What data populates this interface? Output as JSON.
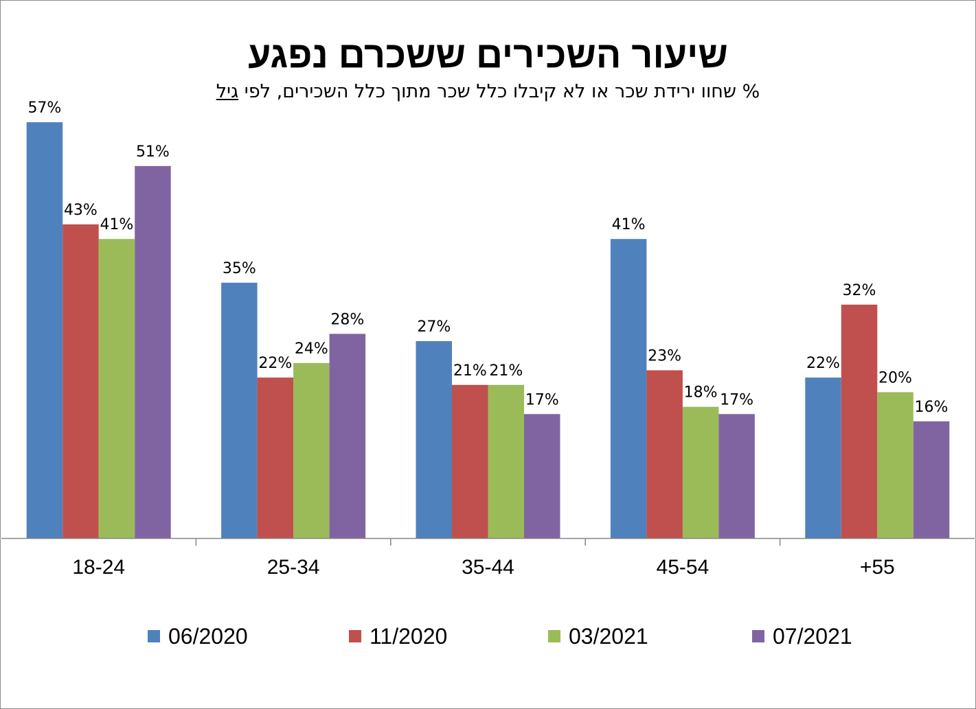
{
  "title": "שיעור השכירים ששכרם נפגע",
  "subtitle": {
    "main": "% שחוו ירידת שכר או לא קיבלו כלל שכר מתוך כלל השכירים, לפי ",
    "underlined": "גיל"
  },
  "chart_data": {
    "type": "bar",
    "title": "שיעור השכירים ששכרם נפגע",
    "subtitle": "% שחוו ירידת שכר או לא קיבלו כלל שכר מתוך כלל השכירים, לפי גיל",
    "categories": [
      "18-24",
      "25-34",
      "35-44",
      "45-54",
      "+55"
    ],
    "series": [
      {
        "name": "06/2020",
        "color": "#4f81bd",
        "values": [
          57,
          35,
          27,
          41,
          22
        ]
      },
      {
        "name": "11/2020",
        "color": "#c0504d",
        "values": [
          43,
          22,
          21,
          23,
          32
        ]
      },
      {
        "name": "03/2021",
        "color": "#9bbb59",
        "values": [
          41,
          24,
          21,
          18,
          20
        ]
      },
      {
        "name": "07/2021",
        "color": "#8064a2",
        "values": [
          51,
          28,
          17,
          17,
          16
        ]
      }
    ],
    "value_suffix": "%",
    "xlabel": "",
    "ylabel": "",
    "ylim": [
      0,
      57
    ],
    "grid": false,
    "legend": "bottom"
  }
}
